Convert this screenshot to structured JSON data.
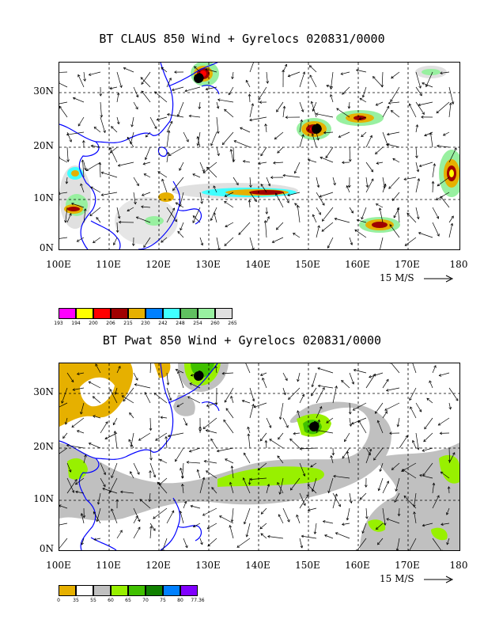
{
  "panel1": {
    "title": "BT CLAUS 850 Wind + Gyrelocs 020831/0000",
    "scale_label": "15 M/S",
    "legend": {
      "labels": [
        "193",
        "194",
        "200",
        "206",
        "215",
        "230",
        "242",
        "248",
        "254",
        "260",
        "265"
      ],
      "colors": [
        "#ff00ff",
        "#ffff00",
        "#ff0000",
        "#a00000",
        "#e6b000",
        "#0080ff",
        "#40ffff",
        "#60c060",
        "#98f0a0",
        "#e0e0e0"
      ]
    }
  },
  "panel2": {
    "title": "BT Pwat 850 Wind + Gyrelocs 020831/0000",
    "scale_label": "15 M/S",
    "legend": {
      "labels": [
        "0",
        "35",
        "55",
        "60",
        "65",
        "70",
        "75",
        "80",
        "77.36"
      ],
      "colors": [
        "#e6b000",
        "#ffffff",
        "#c0c0c0",
        "#98f000",
        "#40c000",
        "#108000",
        "#0080ff",
        "#8000ff"
      ]
    }
  },
  "axes": {
    "y_ticks": [
      "30N",
      "20N",
      "10N",
      "0N"
    ],
    "x_ticks": [
      "100E",
      "110E",
      "120E",
      "130E",
      "140E",
      "150E",
      "160E",
      "170E",
      "180"
    ]
  },
  "colors": {
    "coast": "#0000ff",
    "grid": "#000000"
  }
}
